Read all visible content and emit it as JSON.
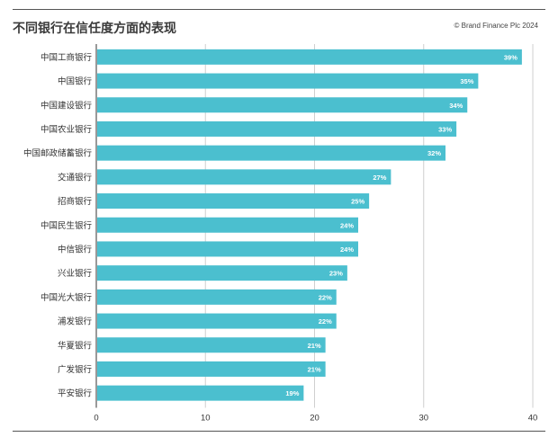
{
  "header": {
    "title": "不同银行在信任度方面的表现",
    "copyright": "© Brand Finance Plc 2024"
  },
  "colors": {
    "bar": "#4bbfcf",
    "grid": "#cfcfcf",
    "axis": "#333333",
    "bar_label": "#ffffff"
  },
  "chart_data": {
    "type": "bar",
    "orientation": "horizontal",
    "title": "不同银行在信任度方面的表现",
    "xlabel": "",
    "ylabel": "",
    "xlim": [
      0,
      40
    ],
    "xticks": [
      0,
      10,
      20,
      30,
      40
    ],
    "grid": true,
    "categories": [
      "中国工商银行",
      "中国银行",
      "中国建设银行",
      "中国农业银行",
      "中国邮政储蓄银行",
      "交通银行",
      "招商银行",
      "中国民生银行",
      "中信银行",
      "兴业银行",
      "中国光大银行",
      "浦发银行",
      "华夏银行",
      "广发银行",
      "平安银行"
    ],
    "values": [
      39,
      35,
      34,
      33,
      32,
      27,
      25,
      24,
      24,
      23,
      22,
      22,
      21,
      21,
      19
    ],
    "value_labels": [
      "39%",
      "35%",
      "34%",
      "33%",
      "32%",
      "27%",
      "25%",
      "24%",
      "24%",
      "23%",
      "22%",
      "22%",
      "21%",
      "21%",
      "19%"
    ]
  }
}
